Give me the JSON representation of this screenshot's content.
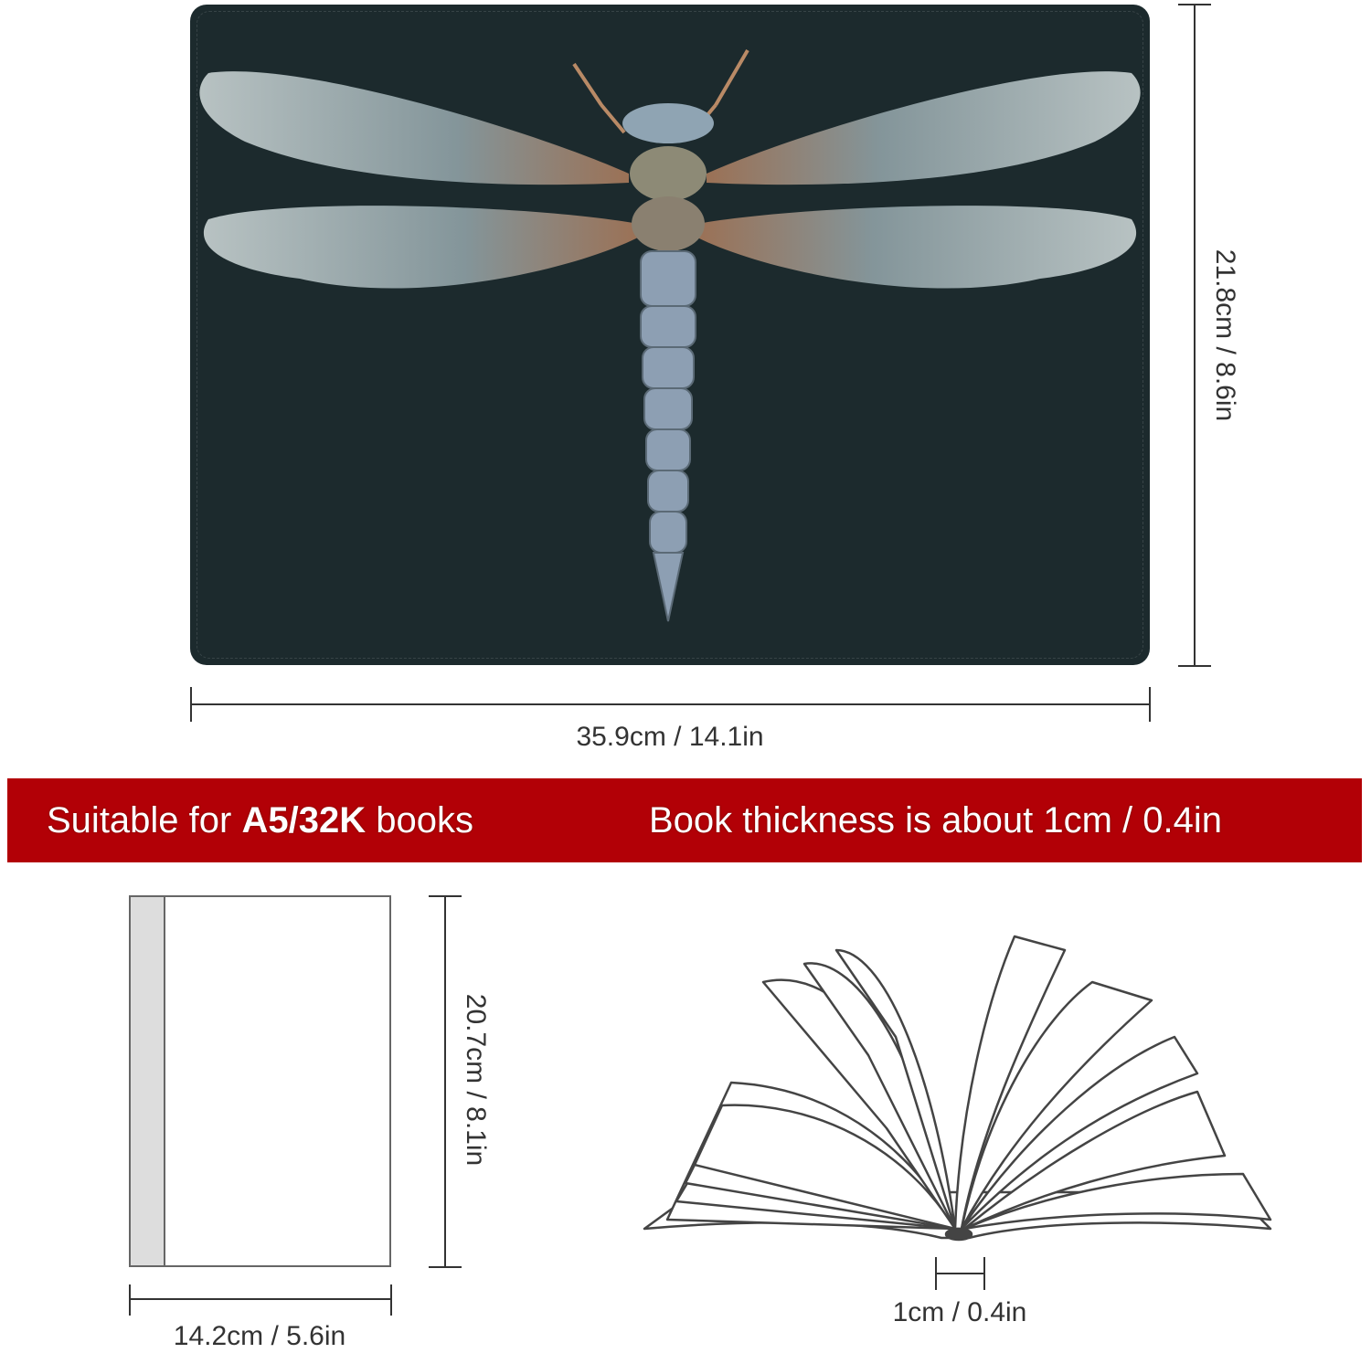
{
  "cover": {
    "image": "dragonfly-illustration",
    "background_color": "#1c2a2d",
    "width_label": "35.9cm / 14.1in",
    "height_label": "21.8cm / 8.6in"
  },
  "banner": {
    "color": "#b20006",
    "suitable_prefix": "Suitable for ",
    "suitable_bold": "A5/32K",
    "suitable_suffix": " books",
    "thickness": "Book thickness is about 1cm / 0.4in"
  },
  "book": {
    "height_label": "20.7cm / 8.1in",
    "width_label": "14.2cm / 5.6in",
    "thickness_label": "1cm / 0.4in"
  }
}
